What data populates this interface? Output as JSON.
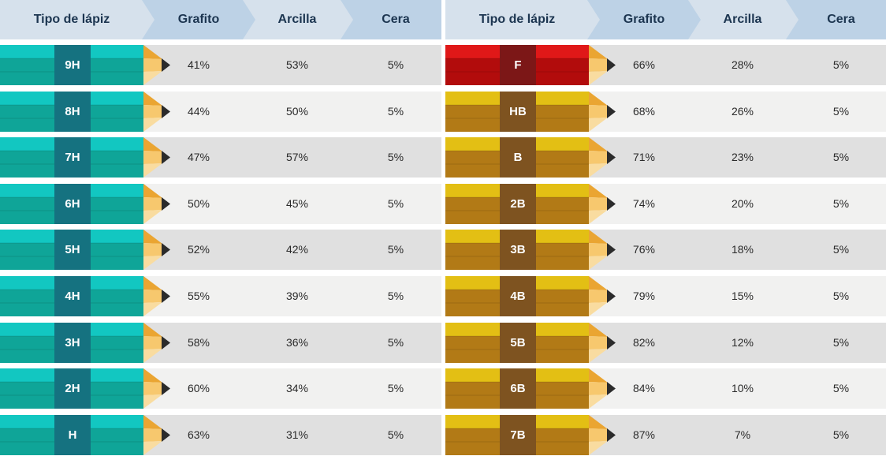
{
  "chart_data": {
    "type": "table",
    "columns": [
      "Tipo de lápiz",
      "Grafito",
      "Arcilla",
      "Cera"
    ],
    "groups": [
      {
        "rows": [
          {
            "label": "9H",
            "values": [
              "41%",
              "53%",
              "5%"
            ],
            "colors": [
              "#12c7c1",
              "#0fa598",
              "#157280"
            ]
          },
          {
            "label": "8H",
            "values": [
              "44%",
              "50%",
              "5%"
            ],
            "colors": [
              "#12c7c1",
              "#0fa598",
              "#157280"
            ]
          },
          {
            "label": "7H",
            "values": [
              "47%",
              "57%",
              "5%"
            ],
            "colors": [
              "#12c7c1",
              "#0fa598",
              "#157280"
            ]
          },
          {
            "label": "6H",
            "values": [
              "50%",
              "45%",
              "5%"
            ],
            "colors": [
              "#12c7c1",
              "#0fa598",
              "#157280"
            ]
          },
          {
            "label": "5H",
            "values": [
              "52%",
              "42%",
              "5%"
            ],
            "colors": [
              "#12c7c1",
              "#0fa598",
              "#157280"
            ]
          },
          {
            "label": "4H",
            "values": [
              "55%",
              "39%",
              "5%"
            ],
            "colors": [
              "#12c7c1",
              "#0fa598",
              "#157280"
            ]
          },
          {
            "label": "3H",
            "values": [
              "58%",
              "36%",
              "5%"
            ],
            "colors": [
              "#12c7c1",
              "#0fa598",
              "#157280"
            ]
          },
          {
            "label": "2H",
            "values": [
              "60%",
              "34%",
              "5%"
            ],
            "colors": [
              "#12c7c1",
              "#0fa598",
              "#157280"
            ]
          },
          {
            "label": "H",
            "values": [
              "63%",
              "31%",
              "5%"
            ],
            "colors": [
              "#12c7c1",
              "#0fa598",
              "#157280"
            ]
          }
        ]
      },
      {
        "rows": [
          {
            "label": "F",
            "values": [
              "66%",
              "28%",
              "5%"
            ],
            "colors": [
              "#e01818",
              "#b20c0c",
              "#7c1717"
            ]
          },
          {
            "label": "HB",
            "values": [
              "68%",
              "26%",
              "5%"
            ],
            "colors": [
              "#e3bf14",
              "#b27a16",
              "#7e5320"
            ]
          },
          {
            "label": "B",
            "values": [
              "71%",
              "23%",
              "5%"
            ],
            "colors": [
              "#e3bf14",
              "#b27a16",
              "#7e5320"
            ]
          },
          {
            "label": "2B",
            "values": [
              "74%",
              "20%",
              "5%"
            ],
            "colors": [
              "#e3bf14",
              "#b27a16",
              "#7e5320"
            ]
          },
          {
            "label": "3B",
            "values": [
              "76%",
              "18%",
              "5%"
            ],
            "colors": [
              "#e3bf14",
              "#b27a16",
              "#7e5320"
            ]
          },
          {
            "label": "4B",
            "values": [
              "79%",
              "15%",
              "5%"
            ],
            "colors": [
              "#e3bf14",
              "#b27a16",
              "#7e5320"
            ]
          },
          {
            "label": "5B",
            "values": [
              "82%",
              "12%",
              "5%"
            ],
            "colors": [
              "#e3bf14",
              "#b27a16",
              "#7e5320"
            ]
          },
          {
            "label": "6B",
            "values": [
              "84%",
              "10%",
              "5%"
            ],
            "colors": [
              "#e3bf14",
              "#b27a16",
              "#7e5320"
            ]
          },
          {
            "label": "7B",
            "values": [
              "87%",
              "7%",
              "5%"
            ],
            "colors": [
              "#e3bf14",
              "#b27a16",
              "#7e5320"
            ]
          }
        ]
      }
    ],
    "style": {
      "header_colors": [
        "#d6e1ec",
        "#bdd2e6"
      ],
      "row_colors": [
        "#e0e0e0",
        "#f1f1f0"
      ],
      "pencil_wood": [
        "#eaa532",
        "#f7c86e",
        "#f9dca0"
      ],
      "pencil_lead": "#2b2b2b"
    }
  }
}
